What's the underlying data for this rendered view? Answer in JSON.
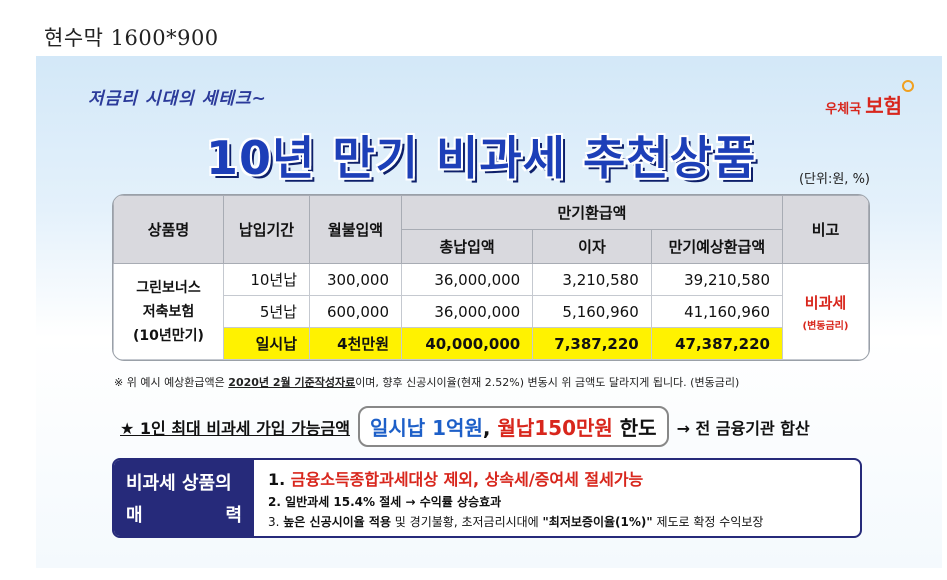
{
  "caption": "현수막 1600*900",
  "tagline": "저금리 시대의 세테크~",
  "brand": {
    "pre": "우체국",
    "main": "보험"
  },
  "headline": "10년 만기 비과세 추천상품",
  "unit": "(단위:원, %)",
  "table": {
    "headers": {
      "product": "상품명",
      "period": "납입기간",
      "monthly": "월불입액",
      "maturity": "만기환급액",
      "total": "총납입액",
      "interest": "이자",
      "expected": "만기예상환급액",
      "remark": "비고"
    },
    "product_lines": [
      "그린보너스",
      "저축보험",
      "(10년만기)"
    ],
    "rows": [
      {
        "period": "10년납",
        "monthly": "300,000",
        "total": "36,000,000",
        "interest": "3,210,580",
        "expected": "39,210,580"
      },
      {
        "period": "5년납",
        "monthly": "600,000",
        "total": "36,000,000",
        "interest": "5,160,960",
        "expected": "41,160,960"
      },
      {
        "period": "일시납",
        "monthly": "4천만원",
        "total": "40,000,000",
        "interest": "7,387,220",
        "expected": "47,387,220"
      }
    ],
    "remark": {
      "main": "비과세",
      "sub": "(변동금리)"
    }
  },
  "footnote": {
    "pre": "※ 위 예시 예상환급액은 ",
    "bold": "2020년 2월 기준작성자료",
    "post": "이며, 향후 신공시이율(현재 2.52%) 변동시 위 금액도 달라지게 됩니다. (변동금리)"
  },
  "limit": {
    "label": "★ 1인 최대 비과세 가입 가능금액",
    "part1": "일시납 1억원",
    "comma": ",",
    "part2": "월납150만원",
    "part3": "한도",
    "tail": "→ 전 금융기관 합산"
  },
  "merit": {
    "head1": "비과세 상품의",
    "head2a": "매",
    "head2b": "력",
    "item1_num": "1.",
    "item1": "금융소득종합과세대상 제외, 상속세/증여세 절세가능",
    "item2": "2. 일반과세 15.4% 절세 → 수익률 상승효과",
    "item3_pre": "3. ",
    "item3_bold1": "높은 신공시이율 적용",
    "item3_mid": " 및 경기불황, 초저금리시대에 ",
    "item3_bold2": "\"최저보증이율(1%)\"",
    "item3_post": " 제도로 확정 수익보장"
  }
}
